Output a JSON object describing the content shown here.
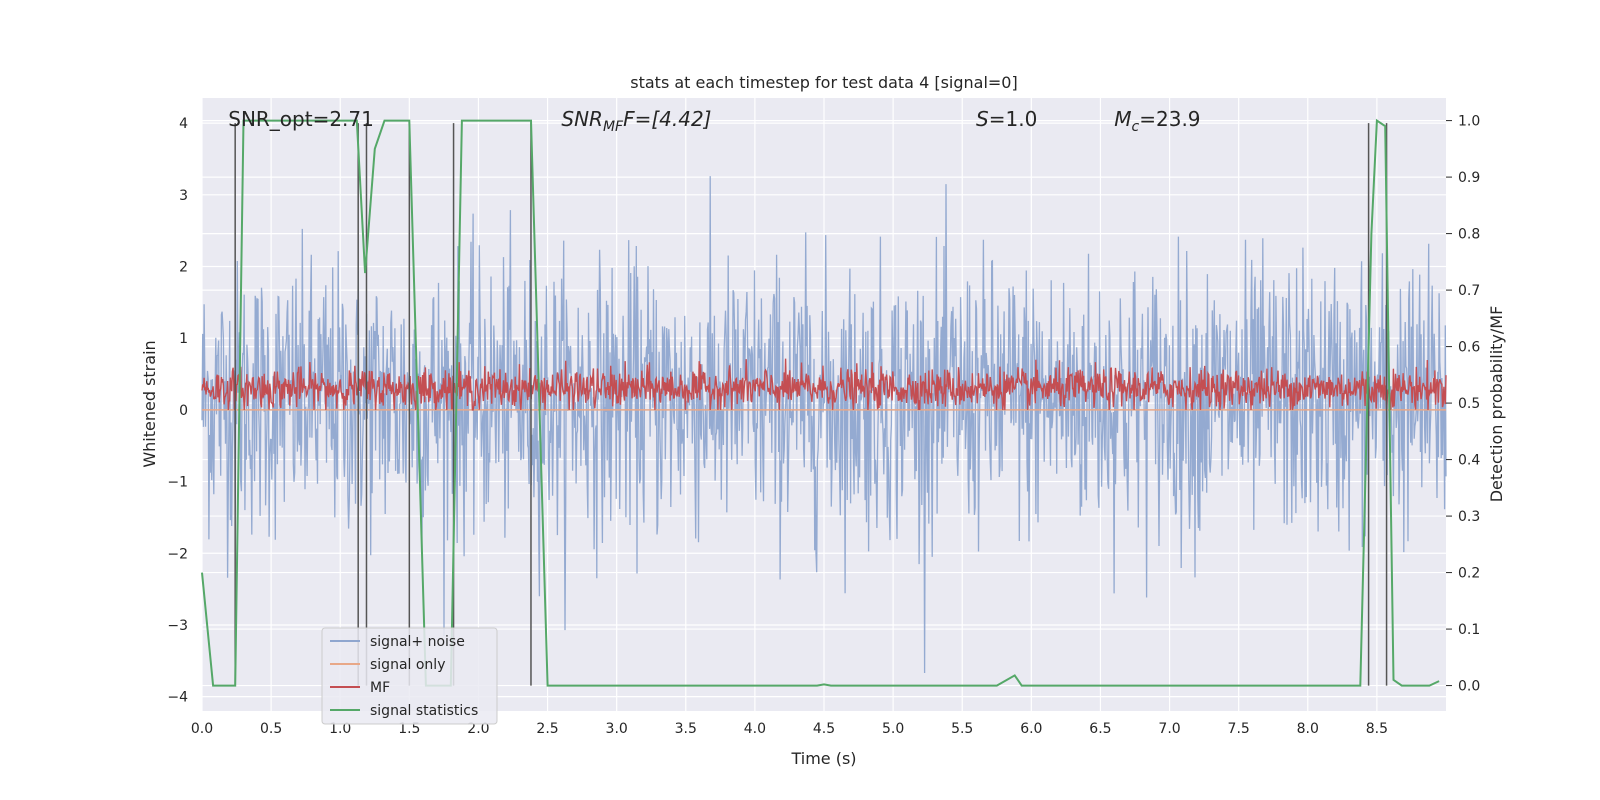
{
  "chart_data": {
    "type": "line",
    "title": "stats at each timestep for test data 4 [signal=0]",
    "xlabel": "Time (s)",
    "ylabel": "Whitened strain",
    "ylabel_right": "Detection probability/MF",
    "xlim": [
      0,
      9.0
    ],
    "ylim": [
      -4.2,
      4.35
    ],
    "ylim_right": [
      -0.045,
      1.04
    ],
    "xticks": [
      0.0,
      0.5,
      1.0,
      1.5,
      2.0,
      2.5,
      3.0,
      3.5,
      4.0,
      4.5,
      5.0,
      5.5,
      6.0,
      6.5,
      7.0,
      7.5,
      8.0,
      8.5
    ],
    "xtick_labels": [
      "0.0",
      "0.5",
      "1.0",
      "1.5",
      "2.0",
      "2.5",
      "3.0",
      "3.5",
      "4.0",
      "4.5",
      "5.0",
      "5.5",
      "6.0",
      "6.5",
      "7.0",
      "7.5",
      "8.0",
      "8.5"
    ],
    "yticks": [
      -4,
      -3,
      -2,
      -1,
      0,
      1,
      2,
      3,
      4
    ],
    "ytick_labels": [
      "−4",
      "−3",
      "−2",
      "−1",
      "0",
      "1",
      "2",
      "3",
      "4"
    ],
    "yticks_right": [
      0.0,
      0.1,
      0.2,
      0.3,
      0.4,
      0.5,
      0.6,
      0.7,
      0.8,
      0.9,
      1.0
    ],
    "ytick_labels_right": [
      "0.0",
      "0.1",
      "0.2",
      "0.3",
      "0.4",
      "0.5",
      "0.6",
      "0.7",
      "0.8",
      "0.9",
      "1.0"
    ],
    "grid": true,
    "legend_position": "lower-left",
    "annotations": [
      {
        "label": "SNR_opt=2.71",
        "x": 0.19,
        "y": 4.0
      },
      {
        "label": "SNR",
        "sub": "MF",
        "rest": "=[4.42]",
        "italic": true,
        "x": 2.6,
        "y": 4.0
      },
      {
        "label": "S",
        "sub": "",
        "rest": "=1.0",
        "italic": true,
        "x": 5.6,
        "y": 4.0
      },
      {
        "label": "M",
        "sub": "c",
        "rest": "=23.9",
        "italic": true,
        "x": 6.6,
        "y": 4.0
      }
    ],
    "series": [
      {
        "name": "signal+ noise",
        "color": "#8fa6cf",
        "style": "noise band",
        "typical_range": [
          -1.7,
          2.0
        ],
        "extreme_range": [
          -3.7,
          3.6
        ],
        "sample_count": 1800
      },
      {
        "name": "signal only",
        "color": "#e8a888",
        "values_summary": 0.0
      },
      {
        "name": "MF",
        "color": "#c44e52",
        "style": "noise band",
        "typical_range": [
          0.05,
          0.6
        ],
        "extreme_range": [
          0.0,
          1.0
        ],
        "sample_count": 1800
      },
      {
        "name": "signal statistics",
        "color": "#55a868",
        "axis": "right",
        "x": [
          0.0,
          0.08,
          0.24,
          0.3,
          1.12,
          1.18,
          1.25,
          1.32,
          1.5,
          1.62,
          1.8,
          1.88,
          2.38,
          2.5,
          2.65,
          4.45,
          4.5,
          4.55,
          5.75,
          5.88,
          5.93,
          8.38,
          8.46,
          8.5,
          8.56,
          8.62,
          8.68,
          8.88,
          8.95
        ],
        "y": [
          0.2,
          0.0,
          0.0,
          1.0,
          1.0,
          0.73,
          0.95,
          1.0,
          1.0,
          0.0,
          0.0,
          1.0,
          1.0,
          0.0,
          0.0,
          0.0,
          0.002,
          0.0,
          0.0,
          0.018,
          0.0,
          0.0,
          0.8,
          1.0,
          0.99,
          0.01,
          0.0,
          0.0,
          0.008
        ]
      }
    ],
    "vertical_lines": {
      "color": "#555555",
      "x": [
        0.24,
        1.13,
        1.19,
        1.5,
        1.82,
        2.38,
        8.44,
        8.57
      ]
    }
  }
}
